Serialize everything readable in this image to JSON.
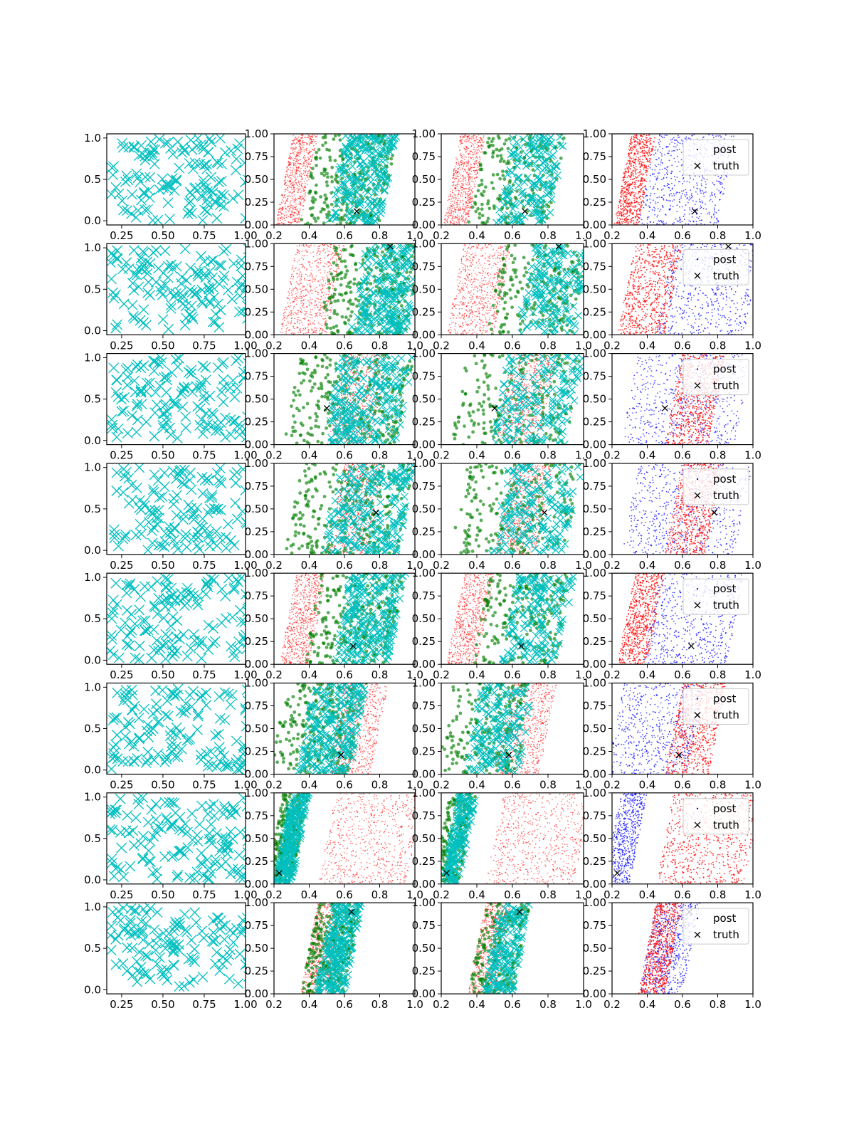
{
  "figure": {
    "rows": 8,
    "cols": 4
  },
  "colors": {
    "prior": "#00bfbf",
    "green": "#008000",
    "red": "#ff0000",
    "blue": "#0000ff",
    "truth": "#000000"
  },
  "chart_data": {
    "type": "scatter",
    "legend": {
      "entries": [
        "post",
        "truth"
      ],
      "placement": "top-right",
      "panels": "column 4"
    },
    "panel_axes": [
      {
        "column": 1,
        "xlim": [
          0.16,
          1.0
        ],
        "ylim": [
          -0.05,
          1.05
        ],
        "xticks": [
          "0.25",
          "0.50",
          "0.75",
          "1.00"
        ],
        "yticks": [
          "0.0",
          "0.5",
          "1.0"
        ]
      },
      {
        "column": "2-4",
        "xlim": [
          0.2,
          1.0
        ],
        "ylim": [
          0.0,
          1.0
        ],
        "xticks": [
          "0.2",
          "0.4",
          "0.6",
          "0.8",
          "1.0"
        ],
        "yticks": [
          "0.00",
          "0.25",
          "0.50",
          "0.75",
          "1.00"
        ]
      }
    ],
    "rows": [
      {
        "truth": [
          0.67,
          0.15
        ],
        "red_band": [
          0.26,
          0.4
        ],
        "other_band": [
          0.4,
          0.85
        ],
        "red_side": "left"
      },
      {
        "truth": [
          0.86,
          0.97
        ],
        "red_band": [
          0.28,
          0.55
        ],
        "other_band": [
          0.5,
          1.0
        ],
        "red_side": "left"
      },
      {
        "truth": [
          0.5,
          0.4
        ],
        "red_band": [
          0.55,
          0.8
        ],
        "other_band": [
          0.3,
          0.95
        ],
        "red_side": "right"
      },
      {
        "truth": [
          0.78,
          0.46
        ],
        "red_band": [
          0.55,
          0.78
        ],
        "other_band": [
          0.3,
          0.95
        ],
        "red_side": "right"
      },
      {
        "truth": [
          0.65,
          0.2
        ],
        "red_band": [
          0.28,
          0.45
        ],
        "other_band": [
          0.42,
          0.9
        ],
        "red_side": "left"
      },
      {
        "truth": [
          0.58,
          0.21
        ],
        "red_band": [
          0.55,
          0.8
        ],
        "other_band": [
          0.22,
          0.68
        ],
        "red_side": "right"
      },
      {
        "truth": [
          0.23,
          0.12
        ],
        "red_band": [
          0.5,
          1.0
        ],
        "other_band": [
          0.2,
          0.35
        ],
        "red_side": "right"
      },
      {
        "truth": [
          0.64,
          0.9
        ],
        "red_band": [
          0.4,
          0.55
        ],
        "other_band": [
          0.4,
          0.65
        ],
        "red_side": "left"
      }
    ]
  }
}
